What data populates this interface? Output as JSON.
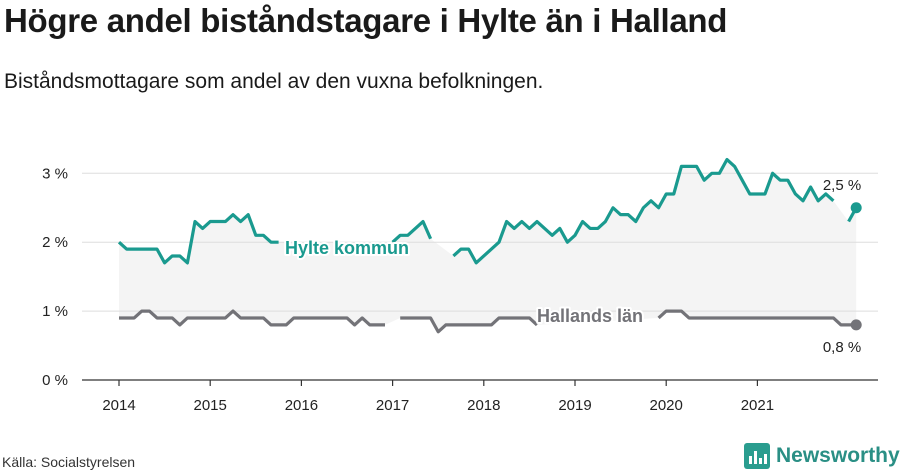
{
  "title": "Högre andel biståndstagare i Hylte än i Halland",
  "subtitle": "Biståndsmottagare som andel av den vuxna befolkningen.",
  "source": "Källa: Socialstyrelsen",
  "brand": {
    "name": "Newsworthy",
    "icon": "newsworthy-bar-icon"
  },
  "colors": {
    "hylte": "#1a9a8f",
    "halland": "#737378",
    "band": "#f4f4f4",
    "grid": "#dddddd",
    "axis": "#333333"
  },
  "chart_data": {
    "type": "line",
    "x_start": "2014-01",
    "x_interval": "month",
    "x_tick_labels": [
      "2014",
      "2015",
      "2016",
      "2017",
      "2018",
      "2019",
      "2020",
      "2021"
    ],
    "y_tick_labels": [
      "0 %",
      "1 %",
      "2 %",
      "3 %"
    ],
    "y_ticks": [
      0,
      1,
      2,
      3
    ],
    "ylim": [
      0,
      3.25
    ],
    "grid": true,
    "shaded_band_between_series": true,
    "series": [
      {
        "name": "Hylte kommun",
        "color_key": "hylte",
        "end_label": "2,5 %",
        "values": [
          2.0,
          1.9,
          1.9,
          1.9,
          1.9,
          1.9,
          1.7,
          1.8,
          1.8,
          1.7,
          2.3,
          2.2,
          2.3,
          2.3,
          2.3,
          2.4,
          2.3,
          2.4,
          2.1,
          2.1,
          2.0,
          2.0,
          null,
          null,
          null,
          null,
          null,
          null,
          null,
          null,
          null,
          null,
          null,
          null,
          null,
          null,
          2.0,
          2.1,
          2.1,
          2.2,
          2.3,
          2.05,
          null,
          null,
          1.8,
          1.9,
          1.9,
          1.7,
          1.8,
          1.9,
          2.0,
          2.3,
          2.2,
          2.3,
          2.2,
          2.3,
          2.2,
          2.1,
          2.2,
          2.0,
          2.1,
          2.3,
          2.2,
          2.2,
          2.3,
          2.5,
          2.4,
          2.4,
          2.3,
          2.5,
          2.6,
          2.5,
          2.7,
          2.7,
          3.1,
          3.1,
          3.1,
          2.9,
          3.0,
          3.0,
          3.2,
          3.1,
          2.9,
          2.7,
          2.7,
          2.7,
          3.0,
          2.9,
          2.9,
          2.7,
          2.6,
          2.8,
          2.6,
          2.7,
          2.6,
          null,
          2.3,
          2.5
        ]
      },
      {
        "name": "Hallands län",
        "color_key": "halland",
        "end_label": "0,8 %",
        "values": [
          0.9,
          0.9,
          0.9,
          1.0,
          1.0,
          0.9,
          0.9,
          0.9,
          0.8,
          0.9,
          0.9,
          0.9,
          0.9,
          0.9,
          0.9,
          1.0,
          0.9,
          0.9,
          0.9,
          0.9,
          0.8,
          0.8,
          0.8,
          0.9,
          0.9,
          0.9,
          0.9,
          0.9,
          0.9,
          0.9,
          0.9,
          0.8,
          0.9,
          0.8,
          0.8,
          0.8,
          null,
          0.9,
          0.9,
          0.9,
          0.9,
          0.9,
          0.7,
          0.8,
          0.8,
          0.8,
          0.8,
          0.8,
          0.8,
          0.8,
          0.9,
          0.9,
          0.9,
          0.9,
          0.9,
          0.8,
          null,
          null,
          null,
          null,
          null,
          null,
          null,
          null,
          null,
          null,
          null,
          null,
          null,
          null,
          null,
          0.9,
          1.0,
          1.0,
          1.0,
          0.9,
          0.9,
          0.9,
          0.9,
          0.9,
          0.9,
          0.9,
          0.9,
          0.9,
          0.9,
          0.9,
          0.9,
          0.9,
          0.9,
          0.9,
          0.9,
          0.9,
          0.9,
          0.9,
          0.9,
          0.8,
          0.8,
          0.8
        ]
      }
    ]
  }
}
